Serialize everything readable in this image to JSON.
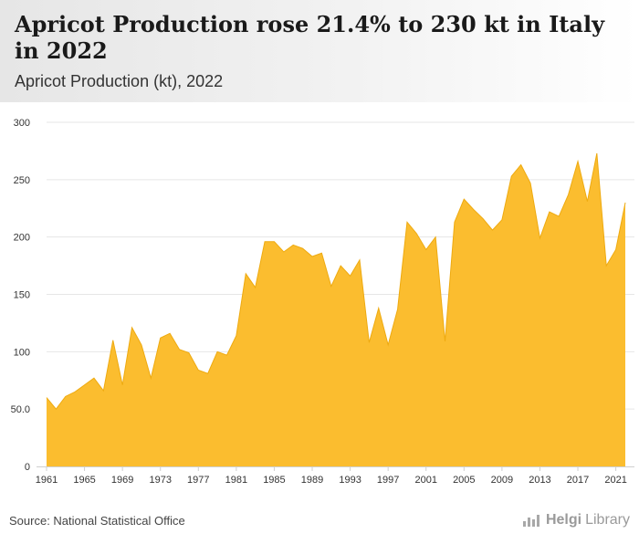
{
  "header": {
    "title": "Apricot Production rose 21.4% to 230 kt in Italy in 2022",
    "subtitle": "Apricot Production (kt), 2022"
  },
  "footer": {
    "source": "Source: National Statistical Office",
    "brand_part1": "Helgi",
    "brand_part2": "Library"
  },
  "colors": {
    "area_fill": "#fbbd2f",
    "area_stroke": "#eeaa10",
    "grid": "#e6e6e6",
    "axis": "#cfcfcf",
    "tick_text": "#333333"
  },
  "chart_data": {
    "type": "area",
    "title": "Apricot Production rose 21.4% to 230 kt in Italy in 2022",
    "subtitle": "Apricot Production (kt), 2022",
    "xlabel": "",
    "ylabel": "",
    "ylim": [
      0,
      300
    ],
    "yticks": [
      0,
      50,
      100,
      150,
      200,
      250,
      300
    ],
    "ytick_labels": [
      "0",
      "50.0",
      "100",
      "150",
      "200",
      "250",
      "300"
    ],
    "xticks": [
      1961,
      1965,
      1969,
      1973,
      1977,
      1981,
      1985,
      1989,
      1993,
      1997,
      2001,
      2005,
      2009,
      2013,
      2017,
      2021
    ],
    "grid": true,
    "legend": "none",
    "series": [
      {
        "x": [
          1961,
          1962,
          1963,
          1964,
          1965,
          1966,
          1967,
          1968,
          1969,
          1970,
          1971,
          1972,
          1973,
          1974,
          1975,
          1976,
          1977,
          1978,
          1979,
          1980,
          1981,
          1982,
          1983,
          1984,
          1985,
          1986,
          1987,
          1988,
          1989,
          1990,
          1991,
          1992,
          1993,
          1994,
          1995,
          1996,
          1997,
          1998,
          1999,
          2000,
          2001,
          2002,
          2003,
          2004,
          2005,
          2006,
          2007,
          2008,
          2009,
          2010,
          2011,
          2012,
          2013,
          2014,
          2015,
          2016,
          2017,
          2018,
          2019,
          2020,
          2021,
          2022
        ],
        "values": [
          60,
          50,
          61,
          65,
          71,
          77,
          66,
          110,
          71,
          121,
          106,
          77,
          112,
          116,
          102,
          99,
          84,
          81,
          100,
          97,
          114,
          168,
          156,
          196,
          196,
          187,
          193,
          190,
          183,
          186,
          157,
          175,
          166,
          180,
          108,
          138,
          106,
          137,
          213,
          203,
          189,
          200,
          109,
          213,
          233,
          224,
          216,
          206,
          215,
          253,
          263,
          247,
          199,
          222,
          218,
          237,
          266,
          231,
          273,
          175,
          189,
          230
        ]
      }
    ]
  }
}
